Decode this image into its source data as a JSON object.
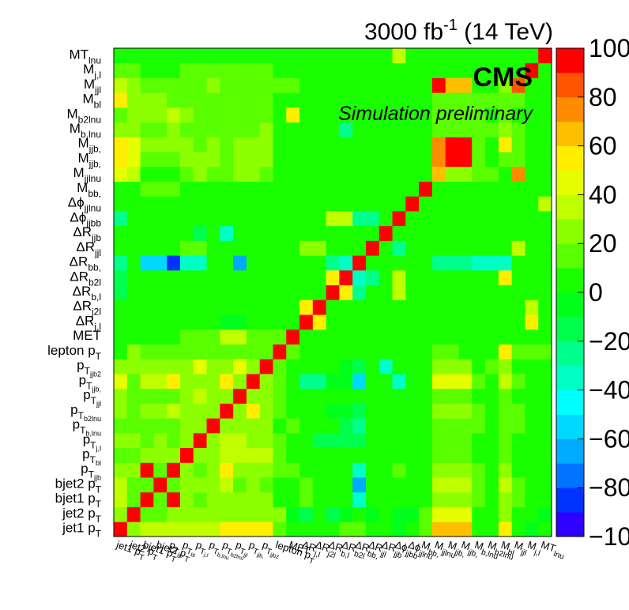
{
  "header": {
    "lumi_main": "3000 fb",
    "lumi_sup": "-1",
    "lumi_energy": " (14 TeV)",
    "experiment": "CMS",
    "status": "Simulation preliminary"
  },
  "colors": {
    "palette": [
      "#7300ff",
      "#2e00ff",
      "#0033ff",
      "#0073ff",
      "#00aaff",
      "#00d9ff",
      "#00ffff",
      "#00ffc4",
      "#00ff8c",
      "#00ff4d",
      "#00ff1a",
      "#1aff00",
      "#59ff00",
      "#8cff00",
      "#bfff00",
      "#e6ff00",
      "#ffee00",
      "#ffbf00",
      "#ff8c00",
      "#ff5500",
      "#ff0000"
    ]
  },
  "chart_data": {
    "type": "heatmap",
    "title": "",
    "variables": [
      {
        "base": "jet1 p",
        "sub": "T"
      },
      {
        "base": "jet2 p",
        "sub": "T"
      },
      {
        "base": "bjet1 p",
        "sub": "T"
      },
      {
        "base": "bjet2 p",
        "sub": "T"
      },
      {
        "base": "p",
        "sub": "T",
        "sub2": "jjb"
      },
      {
        "base": "p",
        "sub": "T",
        "sub2": "bl"
      },
      {
        "base": "p",
        "sub": "T",
        "sub2": "j,l"
      },
      {
        "base": "p",
        "sub": "T",
        "sub2": "b,lnu"
      },
      {
        "base": "p",
        "sub": "T",
        "sub2": "b2lnu"
      },
      {
        "base": "p",
        "sub": "T",
        "sub2": "jjl"
      },
      {
        "base": "p",
        "sub": "T",
        "sub2": "jjb,"
      },
      {
        "base": "p",
        "sub": "T",
        "sub2": "jjb2"
      },
      {
        "base": "lepton p",
        "sub": "T"
      },
      {
        "base": "MET"
      },
      {
        "base": "ΔR",
        "sub": "j,l"
      },
      {
        "base": "ΔR",
        "sub": "j2l"
      },
      {
        "base": "ΔR",
        "sub": "b,l"
      },
      {
        "base": "ΔR",
        "sub": "b2l"
      },
      {
        "base": "ΔR",
        "sub": "bb,"
      },
      {
        "base": "ΔR",
        "sub": "jjl"
      },
      {
        "base": "ΔR",
        "sub": "jjb"
      },
      {
        "base": "Δϕ",
        "sub": "jjbb"
      },
      {
        "base": "Δϕ",
        "sub": "jjlnu"
      },
      {
        "base": "M",
        "sub": "bb,"
      },
      {
        "base": "M",
        "sub": "jjlnu"
      },
      {
        "base": "M",
        "sub": "jjb,"
      },
      {
        "base": "M",
        "sub": "jjb,"
      },
      {
        "base": "M",
        "sub": "b,lnu"
      },
      {
        "base": "M",
        "sub": "b2lnu"
      },
      {
        "base": "M",
        "sub": "bl"
      },
      {
        "base": "M",
        "sub": "jjl"
      },
      {
        "base": "M",
        "sub": "j,l"
      },
      {
        "base": "MT",
        "sub": "lnu"
      }
    ],
    "zlim": [
      -100,
      100
    ],
    "z_ticks": [
      "−100",
      "−80",
      "−60",
      "−40",
      "−20",
      "0",
      "20",
      "40",
      "60",
      "80",
      "100"
    ],
    "z_levels": 20,
    "values": [
      [
        100,
        30,
        40,
        40,
        40,
        40,
        40,
        40,
        60,
        60,
        60,
        60,
        20,
        10,
        10,
        10,
        10,
        20,
        15,
        10,
        10,
        0,
        10,
        20,
        65,
        65,
        65,
        10,
        10,
        60,
        10,
        0,
        5
      ],
      [
        30,
        100,
        20,
        20,
        30,
        30,
        30,
        30,
        30,
        30,
        30,
        30,
        30,
        0,
        -10,
        5,
        -10,
        0,
        5,
        -5,
        5,
        0,
        0,
        20,
        50,
        50,
        50,
        10,
        10,
        30,
        10,
        10,
        0
      ],
      [
        40,
        20,
        100,
        20,
        100,
        30,
        20,
        30,
        30,
        30,
        30,
        30,
        10,
        10,
        20,
        10,
        10,
        5,
        -30,
        10,
        10,
        10,
        10,
        10,
        30,
        30,
        30,
        20,
        10,
        30,
        20,
        10,
        10
      ],
      [
        40,
        20,
        20,
        100,
        20,
        30,
        30,
        30,
        40,
        20,
        30,
        20,
        10,
        10,
        20,
        10,
        10,
        5,
        -60,
        10,
        10,
        10,
        10,
        10,
        40,
        40,
        40,
        20,
        10,
        40,
        20,
        10,
        10
      ],
      [
        30,
        30,
        100,
        20,
        100,
        30,
        20,
        30,
        60,
        30,
        30,
        30,
        20,
        20,
        10,
        10,
        10,
        10,
        -30,
        10,
        10,
        20,
        10,
        10,
        30,
        30,
        30,
        20,
        10,
        30,
        10,
        10,
        10
      ],
      [
        20,
        20,
        30,
        30,
        30,
        100,
        30,
        30,
        40,
        40,
        40,
        40,
        20,
        10,
        10,
        10,
        10,
        10,
        10,
        10,
        10,
        10,
        10,
        10,
        20,
        20,
        20,
        10,
        10,
        20,
        10,
        10,
        10
      ],
      [
        30,
        30,
        20,
        30,
        20,
        30,
        100,
        30,
        40,
        40,
        30,
        30,
        20,
        10,
        10,
        -10,
        -10,
        -10,
        -10,
        10,
        10,
        10,
        10,
        10,
        20,
        20,
        20,
        10,
        10,
        20,
        10,
        10,
        10
      ],
      [
        20,
        20,
        20,
        20,
        20,
        30,
        30,
        100,
        30,
        30,
        30,
        30,
        10,
        20,
        10,
        10,
        10,
        -10,
        -20,
        10,
        10,
        10,
        10,
        10,
        20,
        20,
        20,
        20,
        10,
        20,
        20,
        10,
        10
      ],
      [
        30,
        20,
        30,
        30,
        40,
        30,
        30,
        30,
        100,
        30,
        60,
        30,
        20,
        10,
        10,
        10,
        0,
        0,
        -10,
        10,
        10,
        10,
        10,
        10,
        30,
        30,
        30,
        20,
        10,
        20,
        20,
        10,
        10
      ],
      [
        30,
        20,
        20,
        20,
        20,
        30,
        40,
        30,
        30,
        100,
        30,
        30,
        20,
        10,
        10,
        10,
        10,
        10,
        10,
        10,
        10,
        10,
        10,
        10,
        20,
        20,
        20,
        10,
        10,
        20,
        10,
        10,
        10
      ],
      [
        50,
        20,
        40,
        40,
        60,
        30,
        30,
        30,
        60,
        30,
        100,
        30,
        20,
        10,
        -20,
        -20,
        0,
        0,
        -50,
        10,
        10,
        -30,
        10,
        10,
        50,
        50,
        50,
        20,
        10,
        40,
        20,
        10,
        10
      ],
      [
        30,
        30,
        30,
        30,
        30,
        30,
        50,
        30,
        30,
        50,
        30,
        100,
        20,
        10,
        10,
        10,
        10,
        0,
        -10,
        10,
        -30,
        10,
        10,
        10,
        30,
        30,
        30,
        10,
        20,
        30,
        10,
        10,
        10
      ],
      [
        10,
        30,
        20,
        20,
        20,
        20,
        20,
        20,
        20,
        20,
        20,
        20,
        100,
        20,
        10,
        10,
        10,
        10,
        10,
        10,
        10,
        10,
        10,
        10,
        20,
        20,
        10,
        10,
        10,
        60,
        20,
        20,
        20
      ],
      [
        10,
        10,
        10,
        10,
        10,
        20,
        20,
        20,
        40,
        40,
        20,
        20,
        20,
        100,
        10,
        10,
        10,
        10,
        10,
        10,
        10,
        10,
        10,
        10,
        10,
        10,
        10,
        10,
        10,
        10,
        10,
        10,
        10
      ],
      [
        10,
        10,
        10,
        10,
        10,
        10,
        10,
        10,
        0,
        0,
        10,
        10,
        10,
        10,
        100,
        60,
        10,
        10,
        10,
        10,
        10,
        10,
        10,
        10,
        10,
        10,
        10,
        10,
        10,
        10,
        10,
        60,
        10
      ],
      [
        10,
        10,
        10,
        10,
        10,
        10,
        10,
        10,
        10,
        10,
        10,
        10,
        10,
        10,
        60,
        100,
        10,
        10,
        10,
        10,
        10,
        10,
        10,
        10,
        10,
        10,
        10,
        10,
        10,
        10,
        10,
        40,
        10
      ],
      [
        -10,
        10,
        10,
        10,
        10,
        10,
        10,
        10,
        10,
        10,
        10,
        10,
        10,
        10,
        10,
        10,
        100,
        60,
        -20,
        10,
        10,
        40,
        10,
        10,
        10,
        10,
        10,
        10,
        10,
        10,
        10,
        10,
        10
      ],
      [
        -10,
        10,
        10,
        10,
        10,
        10,
        10,
        10,
        10,
        10,
        10,
        10,
        10,
        10,
        10,
        10,
        60,
        100,
        -30,
        -20,
        10,
        40,
        10,
        10,
        10,
        10,
        10,
        10,
        10,
        60,
        10,
        10,
        10
      ],
      [
        -20,
        10,
        -50,
        -50,
        -80,
        -30,
        -30,
        10,
        10,
        -60,
        10,
        10,
        10,
        10,
        10,
        10,
        -20,
        -30,
        100,
        10,
        10,
        10,
        10,
        10,
        -20,
        -20,
        -20,
        -30,
        -30,
        -30,
        10,
        10,
        10
      ],
      [
        10,
        10,
        10,
        10,
        10,
        20,
        20,
        10,
        10,
        10,
        10,
        10,
        10,
        10,
        30,
        30,
        10,
        10,
        10,
        100,
        10,
        -20,
        10,
        10,
        10,
        10,
        10,
        10,
        10,
        10,
        40,
        10,
        10
      ],
      [
        10,
        10,
        10,
        10,
        10,
        10,
        -10,
        10,
        -30,
        10,
        10,
        10,
        10,
        10,
        10,
        10,
        10,
        10,
        10,
        10,
        100,
        10,
        10,
        10,
        10,
        10,
        10,
        10,
        10,
        10,
        10,
        10,
        10
      ],
      [
        -20,
        10,
        10,
        10,
        10,
        10,
        10,
        10,
        10,
        10,
        10,
        10,
        10,
        10,
        10,
        10,
        40,
        40,
        -20,
        -20,
        10,
        100,
        10,
        10,
        10,
        10,
        10,
        10,
        10,
        10,
        10,
        10,
        10
      ],
      [
        10,
        10,
        10,
        10,
        10,
        10,
        10,
        10,
        10,
        10,
        10,
        10,
        10,
        10,
        10,
        10,
        10,
        10,
        10,
        10,
        10,
        10,
        100,
        10,
        10,
        10,
        10,
        10,
        10,
        10,
        10,
        10,
        40
      ],
      [
        10,
        10,
        20,
        20,
        20,
        10,
        10,
        10,
        10,
        10,
        10,
        10,
        10,
        10,
        10,
        10,
        10,
        10,
        10,
        10,
        10,
        10,
        10,
        100,
        10,
        10,
        10,
        10,
        10,
        10,
        10,
        10,
        10
      ],
      [
        50,
        40,
        10,
        10,
        10,
        20,
        30,
        20,
        20,
        30,
        30,
        20,
        10,
        10,
        10,
        10,
        10,
        10,
        10,
        10,
        10,
        10,
        10,
        10,
        65,
        30,
        30,
        20,
        20,
        10,
        75,
        10,
        10
      ],
      [
        60,
        50,
        20,
        20,
        20,
        30,
        30,
        30,
        20,
        30,
        30,
        30,
        10,
        10,
        10,
        10,
        10,
        10,
        10,
        10,
        10,
        10,
        10,
        10,
        75,
        100,
        100,
        20,
        10,
        20,
        20,
        10,
        10
      ],
      [
        60,
        50,
        30,
        30,
        30,
        30,
        20,
        30,
        20,
        30,
        30,
        30,
        10,
        10,
        10,
        10,
        10,
        10,
        10,
        10,
        10,
        10,
        10,
        10,
        75,
        100,
        100,
        20,
        10,
        60,
        20,
        10,
        10
      ],
      [
        30,
        30,
        20,
        20,
        30,
        20,
        20,
        20,
        20,
        20,
        20,
        30,
        10,
        10,
        10,
        10,
        10,
        -20,
        10,
        10,
        10,
        10,
        10,
        10,
        20,
        20,
        20,
        20,
        20,
        30,
        20,
        10,
        10
      ],
      [
        20,
        30,
        30,
        30,
        40,
        30,
        20,
        20,
        20,
        20,
        20,
        20,
        10,
        60,
        10,
        10,
        10,
        10,
        10,
        10,
        10,
        10,
        10,
        10,
        20,
        20,
        20,
        20,
        10,
        20,
        10,
        10,
        10
      ],
      [
        60,
        30,
        30,
        30,
        20,
        20,
        20,
        20,
        20,
        20,
        20,
        20,
        10,
        10,
        10,
        10,
        10,
        10,
        10,
        10,
        10,
        10,
        10,
        10,
        20,
        20,
        20,
        20,
        20,
        20,
        20,
        10,
        10
      ],
      [
        40,
        30,
        20,
        20,
        20,
        20,
        20,
        30,
        20,
        20,
        20,
        20,
        20,
        20,
        10,
        10,
        10,
        10,
        10,
        10,
        10,
        10,
        10,
        10,
        100,
        65,
        65,
        10,
        10,
        30,
        90,
        10,
        10
      ],
      [
        20,
        20,
        10,
        10,
        10,
        20,
        20,
        20,
        20,
        20,
        20,
        20,
        10,
        10,
        10,
        10,
        10,
        10,
        10,
        10,
        10,
        10,
        10,
        10,
        10,
        10,
        10,
        10,
        10,
        10,
        10,
        100,
        10
      ],
      [
        10,
        10,
        10,
        10,
        10,
        10,
        10,
        10,
        10,
        10,
        10,
        10,
        10,
        10,
        10,
        10,
        10,
        10,
        10,
        10,
        10,
        40,
        10,
        10,
        10,
        10,
        10,
        10,
        10,
        10,
        10,
        10,
        100
      ]
    ]
  }
}
